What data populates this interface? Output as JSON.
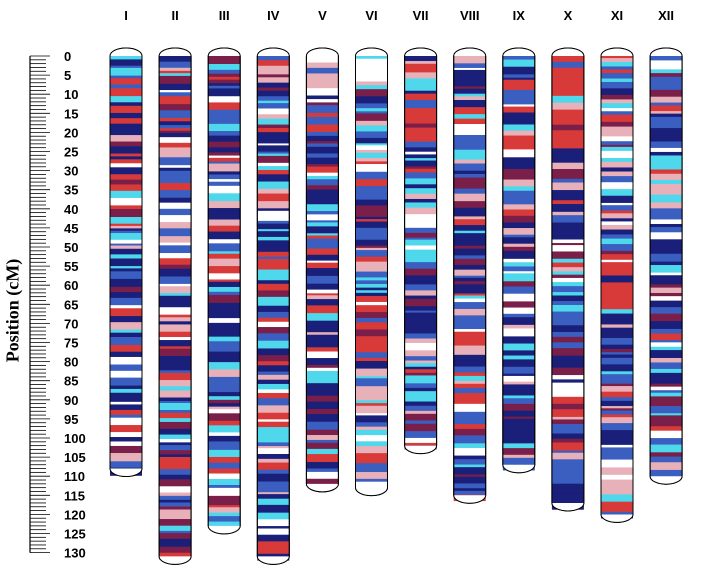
{
  "axis": {
    "label": "Position (cM)",
    "min": 0,
    "max": 130,
    "major_step": 5,
    "minor_step": 1,
    "tick_labels": [
      "0",
      "5",
      "10",
      "15",
      "20",
      "25",
      "30",
      "35",
      "40",
      "45",
      "50",
      "55",
      "60",
      "65",
      "70",
      "75",
      "80",
      "85",
      "90",
      "95",
      "100",
      "105",
      "110",
      "115",
      "120",
      "125",
      "130"
    ]
  },
  "palette": {
    "navy": "#1a1f7a",
    "blue": "#3a5fc0",
    "cyan": "#4fd8ec",
    "red": "#d83a3a",
    "maroon": "#7a1f4a",
    "pink": "#e8b0b8",
    "white": "#ffffff",
    "outline": "#000000"
  },
  "chromosomes": [
    {
      "label": "I",
      "length": 108
    },
    {
      "label": "II",
      "length": 131
    },
    {
      "label": "III",
      "length": 123
    },
    {
      "label": "IV",
      "length": 131
    },
    {
      "label": "V",
      "length": 112
    },
    {
      "label": "VI",
      "length": 113
    },
    {
      "label": "VII",
      "length": 102
    },
    {
      "label": "VIII",
      "length": 115
    },
    {
      "label": "IX",
      "length": 107
    },
    {
      "label": "X",
      "length": 117
    },
    {
      "label": "XI",
      "length": 120
    },
    {
      "label": "XII",
      "length": 110
    }
  ]
}
